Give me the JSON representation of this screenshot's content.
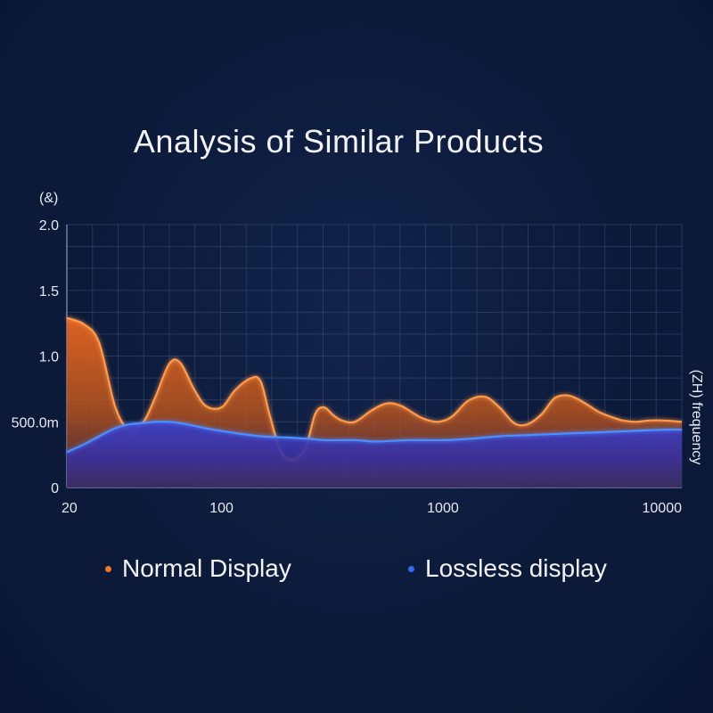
{
  "chart_data": {
    "type": "area",
    "title": "Analysis of Similar Products",
    "ylabel": "(&)",
    "xlabel": "(ZH) frequency",
    "x_scale": "log",
    "xlim": [
      20,
      12000
    ],
    "ylim": [
      0,
      2.0
    ],
    "y_ticks": [
      {
        "value": 0,
        "label": "0"
      },
      {
        "value": 0.5,
        "label": "500.0m"
      },
      {
        "value": 1.0,
        "label": "1.0"
      },
      {
        "value": 1.5,
        "label": "1.5"
      },
      {
        "value": 2.0,
        "label": "2.0"
      }
    ],
    "x_ticks": [
      {
        "value": 20,
        "label": "20"
      },
      {
        "value": 100,
        "label": "100"
      },
      {
        "value": 1000,
        "label": "1000"
      },
      {
        "value": 10000,
        "label": "10000"
      }
    ],
    "grid": true,
    "legend_position": "bottom",
    "series": [
      {
        "name": "Normal Display",
        "color": "#f07a2a",
        "x": [
          20,
          24,
          28,
          33,
          38,
          44,
          50,
          58,
          65,
          75,
          85,
          100,
          115,
          135,
          150,
          165,
          185,
          210,
          240,
          265,
          290,
          320,
          350,
          400,
          480,
          560,
          650,
          800,
          950,
          1100,
          1300,
          1550,
          1800,
          2100,
          2400,
          2800,
          3200,
          3700,
          4300,
          5000,
          5700,
          6500,
          7500,
          8500,
          10000,
          12000
        ],
        "y": [
          1.29,
          1.24,
          1.1,
          0.62,
          0.44,
          0.49,
          0.68,
          0.94,
          0.95,
          0.75,
          0.62,
          0.61,
          0.74,
          0.83,
          0.81,
          0.55,
          0.28,
          0.21,
          0.31,
          0.56,
          0.61,
          0.55,
          0.51,
          0.5,
          0.59,
          0.64,
          0.62,
          0.53,
          0.5,
          0.54,
          0.66,
          0.69,
          0.61,
          0.49,
          0.48,
          0.56,
          0.68,
          0.7,
          0.65,
          0.58,
          0.54,
          0.51,
          0.5,
          0.51,
          0.51,
          0.5
        ]
      },
      {
        "name": "Lossless display",
        "color": "#2f6df0",
        "x": [
          20,
          24,
          28,
          33,
          38,
          44,
          50,
          58,
          65,
          75,
          85,
          100,
          120,
          150,
          200,
          250,
          300,
          400,
          500,
          700,
          1000,
          1300,
          1800,
          2500,
          3500,
          5000,
          7000,
          10000,
          12000
        ],
        "y": [
          0.27,
          0.33,
          0.39,
          0.45,
          0.48,
          0.49,
          0.5,
          0.5,
          0.49,
          0.47,
          0.45,
          0.43,
          0.41,
          0.39,
          0.38,
          0.37,
          0.36,
          0.36,
          0.35,
          0.36,
          0.36,
          0.37,
          0.39,
          0.4,
          0.41,
          0.42,
          0.43,
          0.44,
          0.44
        ]
      }
    ]
  }
}
